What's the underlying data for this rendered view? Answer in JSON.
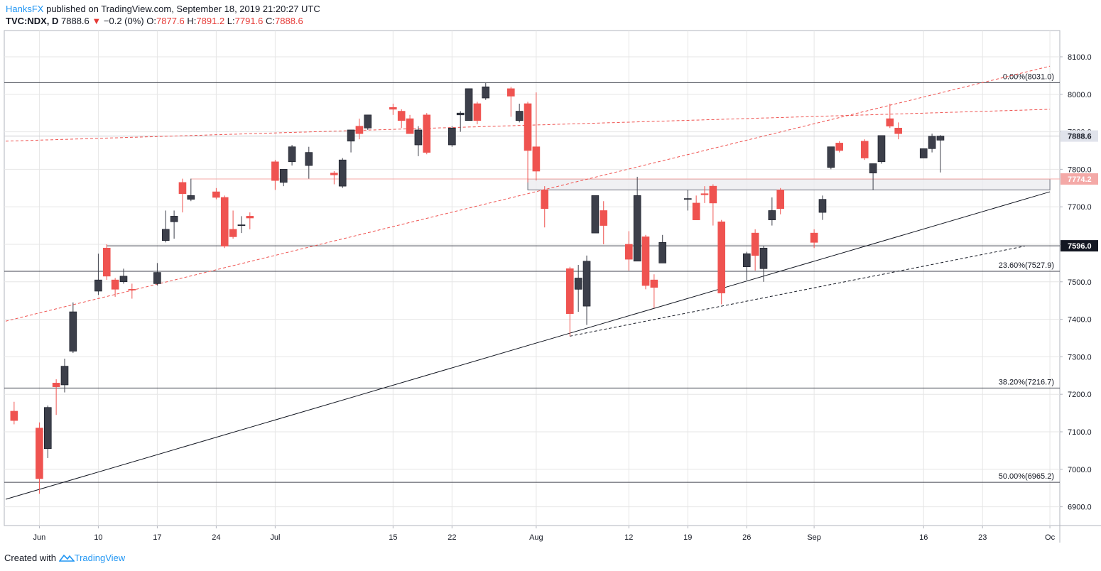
{
  "header": {
    "author": "HanksFX",
    "published_text": "published on TradingView.com, September 18, 2019 21:20:27 UTC",
    "symbol": "TVC:NDX, D",
    "last": "7888.6",
    "change": "−0.2 (0%)",
    "o_label": "O:",
    "o_value": "7877.6",
    "h_label": "H:",
    "h_value": "7891.2",
    "l_label": "L:",
    "l_value": "7791.6",
    "c_label": "C:",
    "c_value": "7888.6"
  },
  "footer": {
    "created_text": "Created with",
    "brand": "TradingView"
  },
  "colors": {
    "up": "#3c3f4a",
    "down": "#ef5350",
    "accent": "#2196f3",
    "grid": "#e6e6e6"
  },
  "chart_data": {
    "type": "candlestick",
    "title": "",
    "ylim": [
      6850,
      8170
    ],
    "y_ticks": [
      6900,
      7000,
      7100,
      7200,
      7300,
      7400,
      7500,
      7600,
      7700,
      7800,
      7900,
      8000,
      8100
    ],
    "y_tick_labels": [
      "6900.0",
      "7000.0",
      "7100.0",
      "7200.0",
      "7300.0",
      "7400.0",
      "7500.0",
      "7600.0",
      "7700.0",
      "7800.0",
      "7900.0",
      "8000.0",
      "8100.0"
    ],
    "x_ticks": [
      {
        "label": "Jun",
        "date": "2019-06-03"
      },
      {
        "label": "10",
        "date": "2019-06-10"
      },
      {
        "label": "17",
        "date": "2019-06-17"
      },
      {
        "label": "24",
        "date": "2019-06-24"
      },
      {
        "label": "Jul",
        "date": "2019-07-01"
      },
      {
        "label": "15",
        "date": "2019-07-15"
      },
      {
        "label": "22",
        "date": "2019-07-22"
      },
      {
        "label": "Aug",
        "date": "2019-08-01"
      },
      {
        "label": "12",
        "date": "2019-08-12"
      },
      {
        "label": "19",
        "date": "2019-08-19"
      },
      {
        "label": "26",
        "date": "2019-08-26"
      },
      {
        "label": "Sep",
        "date": "2019-09-03"
      },
      {
        "label": "16",
        "date": "2019-09-16"
      },
      {
        "label": "23",
        "date": "2019-09-23"
      },
      {
        "label": "Oc",
        "date": "2019-10-01"
      }
    ],
    "candles": [
      {
        "date": "2019-05-31",
        "o": 7155,
        "h": 7180,
        "l": 7120,
        "c": 7130
      },
      {
        "date": "2019-06-03",
        "o": 7110,
        "h": 7125,
        "l": 6935,
        "c": 6975
      },
      {
        "date": "2019-06-04",
        "o": 7055,
        "h": 7170,
        "l": 7030,
        "c": 7165
      },
      {
        "date": "2019-06-05",
        "o": 7230,
        "h": 7240,
        "l": 7145,
        "c": 7220
      },
      {
        "date": "2019-06-06",
        "o": 7225,
        "h": 7295,
        "l": 7205,
        "c": 7275
      },
      {
        "date": "2019-06-07",
        "o": 7315,
        "h": 7445,
        "l": 7310,
        "c": 7420
      },
      {
        "date": "2019-06-10",
        "o": 7475,
        "h": 7575,
        "l": 7465,
        "c": 7505
      },
      {
        "date": "2019-06-11",
        "o": 7590,
        "h": 7600,
        "l": 7505,
        "c": 7515
      },
      {
        "date": "2019-06-12",
        "o": 7505,
        "h": 7510,
        "l": 7460,
        "c": 7480
      },
      {
        "date": "2019-06-13",
        "o": 7500,
        "h": 7535,
        "l": 7495,
        "c": 7515
      },
      {
        "date": "2019-06-14",
        "o": 7480,
        "h": 7495,
        "l": 7455,
        "c": 7478
      },
      {
        "date": "2019-06-17",
        "o": 7495,
        "h": 7550,
        "l": 7490,
        "c": 7525
      },
      {
        "date": "2019-06-18",
        "o": 7610,
        "h": 7690,
        "l": 7605,
        "c": 7640
      },
      {
        "date": "2019-06-19",
        "o": 7660,
        "h": 7690,
        "l": 7615,
        "c": 7675
      },
      {
        "date": "2019-06-20",
        "o": 7765,
        "h": 7775,
        "l": 7685,
        "c": 7735
      },
      {
        "date": "2019-06-21",
        "o": 7720,
        "h": 7775,
        "l": 7715,
        "c": 7730
      },
      {
        "date": "2019-06-24",
        "o": 7740,
        "h": 7750,
        "l": 7720,
        "c": 7725
      },
      {
        "date": "2019-06-25",
        "o": 7725,
        "h": 7730,
        "l": 7590,
        "c": 7595
      },
      {
        "date": "2019-06-26",
        "o": 7640,
        "h": 7690,
        "l": 7615,
        "c": 7620
      },
      {
        "date": "2019-06-27",
        "o": 7650,
        "h": 7675,
        "l": 7630,
        "c": 7652
      },
      {
        "date": "2019-06-28",
        "o": 7675,
        "h": 7685,
        "l": 7640,
        "c": 7670
      },
      {
        "date": "2019-07-01",
        "o": 7820,
        "h": 7825,
        "l": 7745,
        "c": 7770
      },
      {
        "date": "2019-07-02",
        "o": 7765,
        "h": 7800,
        "l": 7755,
        "c": 7800
      },
      {
        "date": "2019-07-03",
        "o": 7820,
        "h": 7865,
        "l": 7810,
        "c": 7860
      },
      {
        "date": "2019-07-05",
        "o": 7810,
        "h": 7860,
        "l": 7775,
        "c": 7845
      },
      {
        "date": "2019-07-08",
        "o": 7790,
        "h": 7795,
        "l": 7760,
        "c": 7785
      },
      {
        "date": "2019-07-09",
        "o": 7755,
        "h": 7830,
        "l": 7750,
        "c": 7825
      },
      {
        "date": "2019-07-10",
        "o": 7875,
        "h": 7895,
        "l": 7845,
        "c": 7905
      },
      {
        "date": "2019-07-11",
        "o": 7915,
        "h": 7935,
        "l": 7880,
        "c": 7895
      },
      {
        "date": "2019-07-12",
        "o": 7910,
        "h": 7945,
        "l": 7905,
        "c": 7945
      },
      {
        "date": "2019-07-15",
        "o": 7965,
        "h": 7975,
        "l": 7945,
        "c": 7960
      },
      {
        "date": "2019-07-16",
        "o": 7955,
        "h": 7960,
        "l": 7910,
        "c": 7930
      },
      {
        "date": "2019-07-17",
        "o": 7935,
        "h": 7945,
        "l": 7895,
        "c": 7895
      },
      {
        "date": "2019-07-18",
        "o": 7865,
        "h": 7915,
        "l": 7835,
        "c": 7905
      },
      {
        "date": "2019-07-19",
        "o": 7945,
        "h": 7950,
        "l": 7840,
        "c": 7845
      },
      {
        "date": "2019-07-22",
        "o": 7865,
        "h": 7915,
        "l": 7860,
        "c": 7910
      },
      {
        "date": "2019-07-23",
        "o": 7945,
        "h": 7955,
        "l": 7900,
        "c": 7950
      },
      {
        "date": "2019-07-24",
        "o": 7930,
        "h": 8015,
        "l": 7930,
        "c": 8015
      },
      {
        "date": "2019-07-25",
        "o": 7975,
        "h": 7980,
        "l": 7920,
        "c": 7930
      },
      {
        "date": "2019-07-26",
        "o": 7990,
        "h": 8030,
        "l": 7985,
        "c": 8020
      },
      {
        "date": "2019-07-29",
        "o": 8015,
        "h": 8020,
        "l": 7940,
        "c": 7995
      },
      {
        "date": "2019-07-30",
        "o": 7930,
        "h": 7975,
        "l": 7925,
        "c": 7955
      },
      {
        "date": "2019-07-31",
        "o": 7975,
        "h": 7980,
        "l": 7765,
        "c": 7850
      },
      {
        "date": "2019-08-01",
        "o": 7860,
        "h": 8005,
        "l": 7770,
        "c": 7795
      },
      {
        "date": "2019-08-02",
        "o": 7745,
        "h": 7755,
        "l": 7645,
        "c": 7695
      },
      {
        "date": "2019-08-05",
        "o": 7535,
        "h": 7540,
        "l": 7355,
        "c": 7415
      },
      {
        "date": "2019-08-06",
        "o": 7480,
        "h": 7545,
        "l": 7420,
        "c": 7510
      },
      {
        "date": "2019-08-07",
        "o": 7435,
        "h": 7570,
        "l": 7385,
        "c": 7555
      },
      {
        "date": "2019-08-08",
        "o": 7630,
        "h": 7730,
        "l": 7630,
        "c": 7730
      },
      {
        "date": "2019-08-09",
        "o": 7690,
        "h": 7715,
        "l": 7600,
        "c": 7650
      },
      {
        "date": "2019-08-12",
        "o": 7600,
        "h": 7635,
        "l": 7530,
        "c": 7560
      },
      {
        "date": "2019-08-13",
        "o": 7555,
        "h": 7780,
        "l": 7555,
        "c": 7730
      },
      {
        "date": "2019-08-14",
        "o": 7620,
        "h": 7625,
        "l": 7480,
        "c": 7490
      },
      {
        "date": "2019-08-15",
        "o": 7505,
        "h": 7520,
        "l": 7430,
        "c": 7485
      },
      {
        "date": "2019-08-16",
        "o": 7550,
        "h": 7625,
        "l": 7550,
        "c": 7605
      },
      {
        "date": "2019-08-19",
        "o": 7720,
        "h": 7745,
        "l": 7690,
        "c": 7722
      },
      {
        "date": "2019-08-20",
        "o": 7710,
        "h": 7730,
        "l": 7665,
        "c": 7665
      },
      {
        "date": "2019-08-21",
        "o": 7735,
        "h": 7755,
        "l": 7710,
        "c": 7732
      },
      {
        "date": "2019-08-22",
        "o": 7755,
        "h": 7760,
        "l": 7650,
        "c": 7710
      },
      {
        "date": "2019-08-23",
        "o": 7660,
        "h": 7665,
        "l": 7440,
        "c": 7470
      },
      {
        "date": "2019-08-26",
        "o": 7540,
        "h": 7580,
        "l": 7505,
        "c": 7575
      },
      {
        "date": "2019-08-27",
        "o": 7630,
        "h": 7640,
        "l": 7530,
        "c": 7570
      },
      {
        "date": "2019-08-28",
        "o": 7535,
        "h": 7595,
        "l": 7500,
        "c": 7590
      },
      {
        "date": "2019-08-29",
        "o": 7665,
        "h": 7725,
        "l": 7650,
        "c": 7690
      },
      {
        "date": "2019-08-30",
        "o": 7745,
        "h": 7750,
        "l": 7680,
        "c": 7695
      },
      {
        "date": "2019-09-03",
        "o": 7630,
        "h": 7640,
        "l": 7590,
        "c": 7605
      },
      {
        "date": "2019-09-04",
        "o": 7685,
        "h": 7730,
        "l": 7665,
        "c": 7720
      },
      {
        "date": "2019-09-05",
        "o": 7805,
        "h": 7860,
        "l": 7800,
        "c": 7860
      },
      {
        "date": "2019-09-06",
        "o": 7870,
        "h": 7875,
        "l": 7845,
        "c": 7850
      },
      {
        "date": "2019-09-09",
        "o": 7875,
        "h": 7880,
        "l": 7825,
        "c": 7830
      },
      {
        "date": "2019-09-10",
        "o": 7790,
        "h": 7815,
        "l": 7745,
        "c": 7815
      },
      {
        "date": "2019-09-11",
        "o": 7820,
        "h": 7890,
        "l": 7815,
        "c": 7890
      },
      {
        "date": "2019-09-12",
        "o": 7935,
        "h": 7975,
        "l": 7910,
        "c": 7915
      },
      {
        "date": "2019-09-13",
        "o": 7910,
        "h": 7925,
        "l": 7880,
        "c": 7895
      },
      {
        "date": "2019-09-16",
        "o": 7830,
        "h": 7855,
        "l": 7830,
        "c": 7855
      },
      {
        "date": "2019-09-17",
        "o": 7855,
        "h": 7895,
        "l": 7845,
        "c": 7888
      },
      {
        "date": "2019-09-18",
        "o": 7877.6,
        "h": 7891.2,
        "l": 7791.6,
        "c": 7888.6
      }
    ],
    "fib_levels": [
      {
        "price": 8031.0,
        "label": "0.00%(8031.0)"
      },
      {
        "price": 7527.9,
        "label": "23.60%(7527.9)"
      },
      {
        "price": 7216.7,
        "label": "38.20%(7216.7)"
      },
      {
        "price": 6965.2,
        "label": "50.00%(6965.2)"
      }
    ],
    "support_line": {
      "price": 7596.0,
      "label": "7596.0",
      "start": "2019-06-11"
    },
    "pink_line": {
      "price": 7774.2,
      "label": "7774.2",
      "start": "2019-06-21"
    },
    "price_line": {
      "price": 7888.6,
      "label": "7888.6"
    },
    "zone": {
      "top": 7774,
      "bottom": 7745,
      "start": "2019-07-31",
      "end": "2019-10-01"
    },
    "trendlines": [
      {
        "style": "solid",
        "color": "#131722",
        "from": {
          "date": "2019-05-30",
          "price": 6920
        },
        "to": {
          "date": "2019-10-01",
          "price": 7740
        }
      },
      {
        "style": "dashed",
        "color": "#131722",
        "from": {
          "date": "2019-08-05",
          "price": 7355
        },
        "to": {
          "date": "2019-09-28",
          "price": 7595
        }
      },
      {
        "style": "dashed",
        "color": "#ef5350",
        "from": {
          "date": "2019-05-30",
          "price": 7395
        },
        "to": {
          "date": "2019-10-01",
          "price": 8075
        }
      },
      {
        "style": "dashed",
        "color": "#ef5350",
        "from": {
          "date": "2019-05-30",
          "price": 7875
        },
        "to": {
          "date": "2019-10-01",
          "price": 7960
        }
      }
    ]
  }
}
